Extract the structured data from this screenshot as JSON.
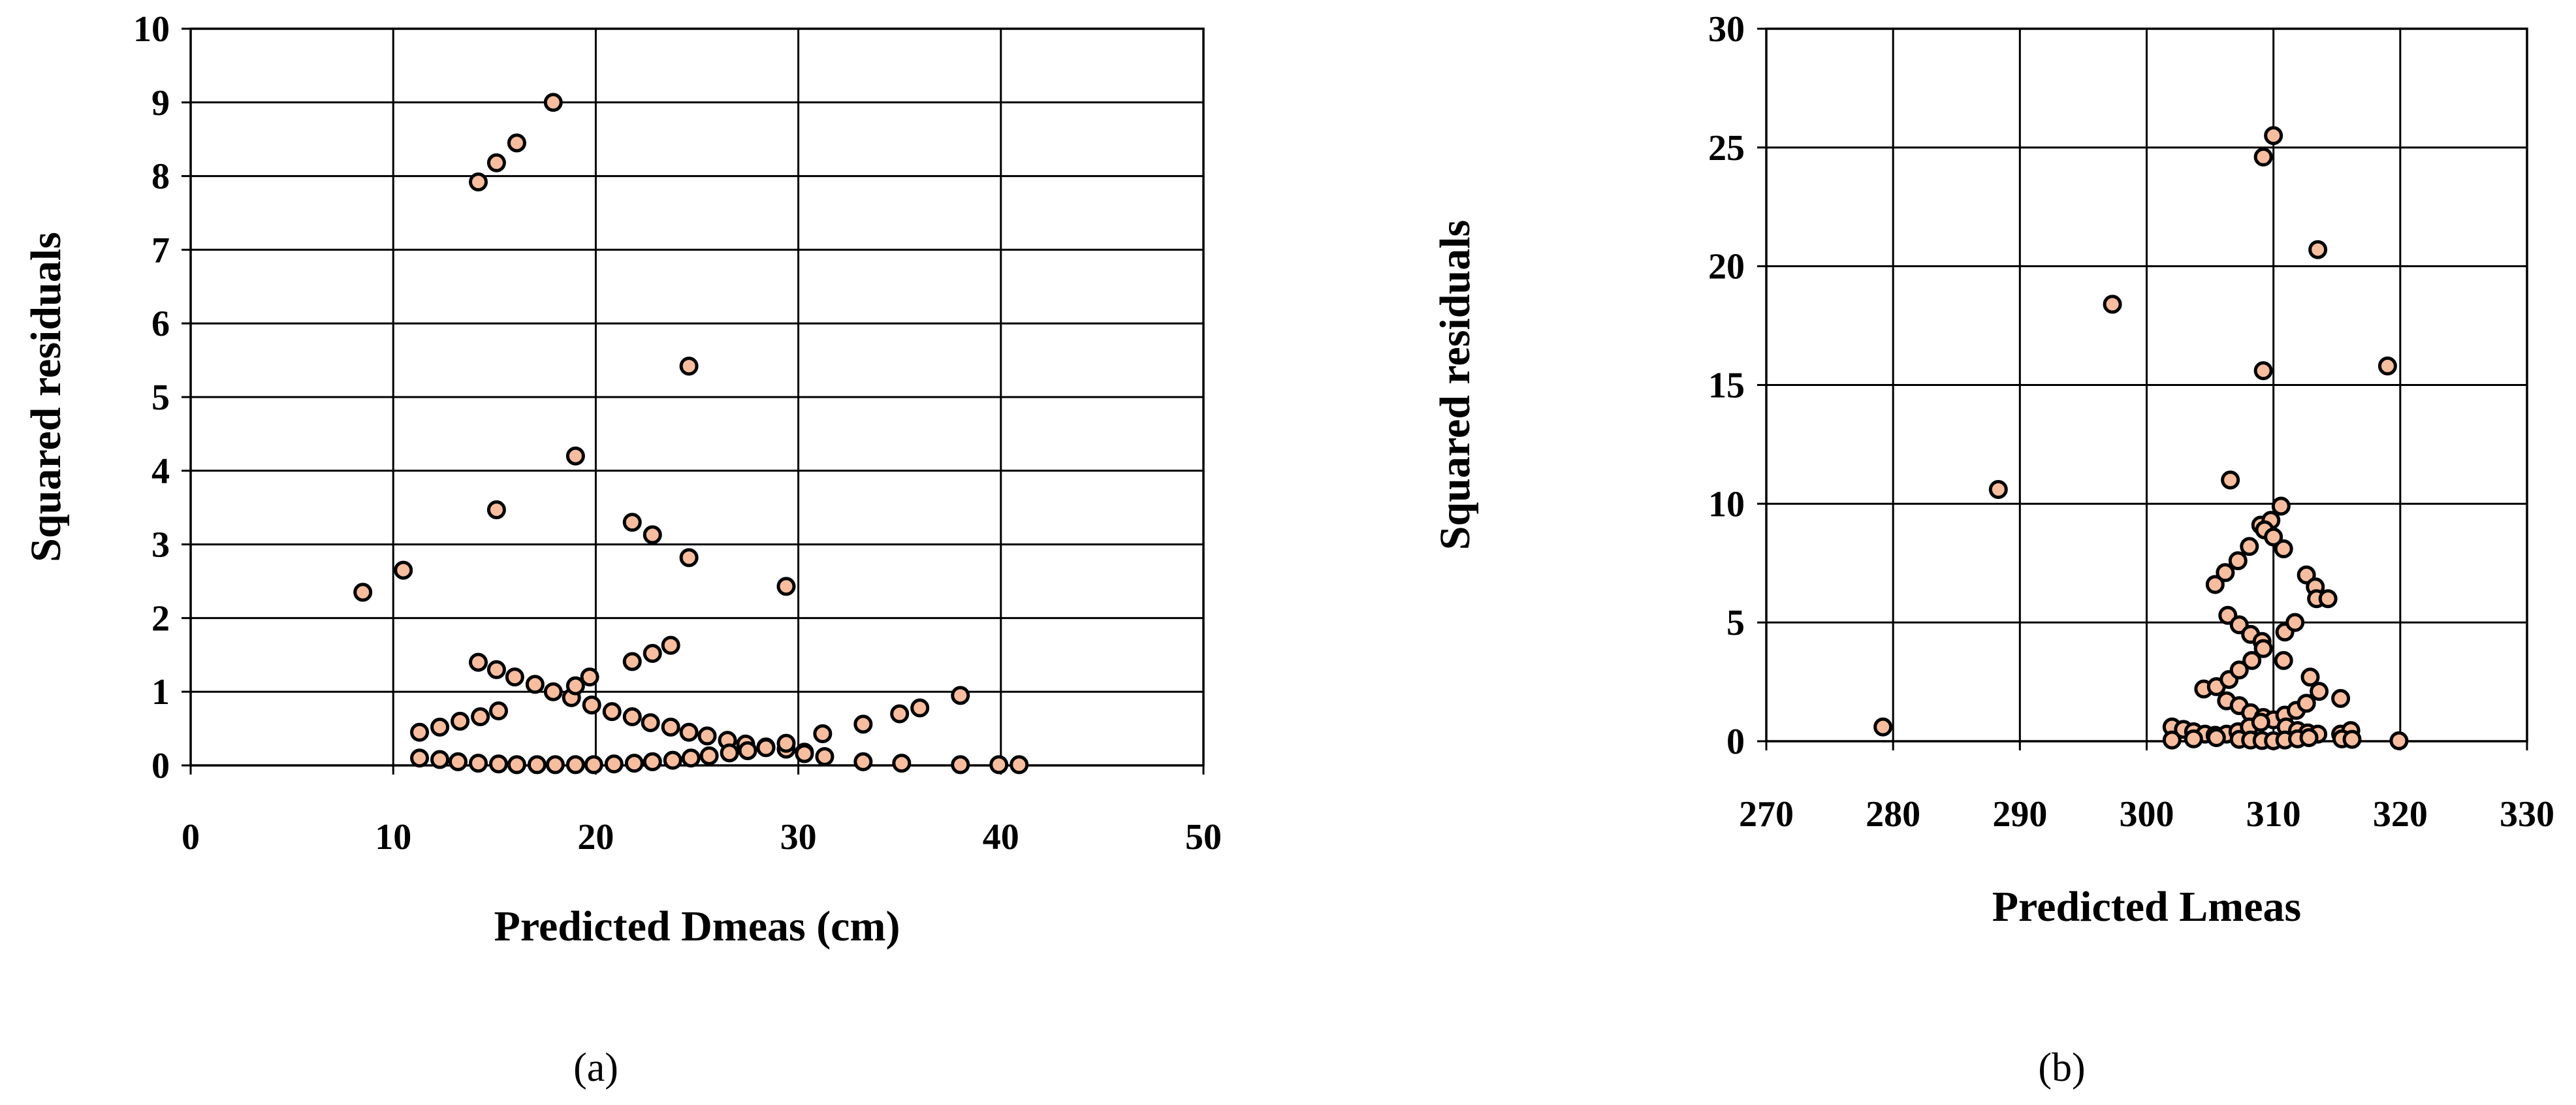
{
  "colors": {
    "marker_fill": "#f6bd9e",
    "marker_edge": "#000000"
  },
  "chart_data": [
    {
      "type": "scatter",
      "panel_label": "(a)",
      "xlabel": "Predicted Dmeas (cm)",
      "ylabel": "Squared residuals",
      "xlim": [
        0,
        50
      ],
      "ylim": [
        0,
        10
      ],
      "xticks": [
        "0",
        "10",
        "20",
        "30",
        "40",
        "50"
      ],
      "yticks": [
        "0",
        "1",
        "2",
        "3",
        "4",
        "5",
        "6",
        "7",
        "8",
        "9",
        "10"
      ],
      "grid": true,
      "legend": "none",
      "points": [
        [
          8.5,
          2.35
        ],
        [
          10.5,
          2.65
        ],
        [
          14.2,
          7.92
        ],
        [
          15.1,
          8.18
        ],
        [
          16.1,
          8.45
        ],
        [
          17.9,
          9.0
        ],
        [
          15.1,
          3.47
        ],
        [
          19.0,
          4.2
        ],
        [
          21.8,
          3.3
        ],
        [
          22.8,
          3.13
        ],
        [
          24.6,
          2.82
        ],
        [
          24.6,
          5.42
        ],
        [
          29.4,
          2.43
        ],
        [
          14.2,
          1.4
        ],
        [
          15.1,
          1.3
        ],
        [
          16.0,
          1.2
        ],
        [
          17.0,
          1.1
        ],
        [
          17.9,
          1.0
        ],
        [
          18.8,
          0.92
        ],
        [
          19.0,
          1.08
        ],
        [
          19.7,
          1.2
        ],
        [
          19.8,
          0.82
        ],
        [
          20.8,
          0.73
        ],
        [
          21.8,
          0.66
        ],
        [
          22.7,
          0.58
        ],
        [
          23.7,
          0.52
        ],
        [
          24.6,
          0.45
        ],
        [
          25.5,
          0.4
        ],
        [
          26.5,
          0.34
        ],
        [
          27.4,
          0.29
        ],
        [
          28.4,
          0.25
        ],
        [
          29.4,
          0.22
        ],
        [
          30.3,
          0.18
        ],
        [
          31.2,
          0.43
        ],
        [
          33.2,
          0.56
        ],
        [
          35.0,
          0.7
        ],
        [
          36.0,
          0.78
        ],
        [
          38.0,
          0.95
        ],
        [
          11.3,
          0.45
        ],
        [
          12.3,
          0.52
        ],
        [
          13.3,
          0.6
        ],
        [
          14.3,
          0.66
        ],
        [
          15.2,
          0.74
        ],
        [
          21.8,
          1.41
        ],
        [
          22.8,
          1.52
        ],
        [
          23.7,
          1.63
        ],
        [
          11.3,
          0.1
        ],
        [
          12.3,
          0.08
        ],
        [
          13.2,
          0.05
        ],
        [
          14.2,
          0.03
        ],
        [
          15.2,
          0.02
        ],
        [
          16.1,
          0.01
        ],
        [
          17.1,
          0.01
        ],
        [
          18.0,
          0.01
        ],
        [
          19.0,
          0.01
        ],
        [
          19.9,
          0.01
        ],
        [
          20.9,
          0.02
        ],
        [
          21.9,
          0.03
        ],
        [
          22.8,
          0.05
        ],
        [
          23.8,
          0.07
        ],
        [
          24.7,
          0.1
        ],
        [
          25.6,
          0.13
        ],
        [
          26.6,
          0.17
        ],
        [
          27.5,
          0.2
        ],
        [
          28.4,
          0.24
        ],
        [
          29.4,
          0.3
        ],
        [
          30.3,
          0.16
        ],
        [
          31.3,
          0.12
        ],
        [
          33.2,
          0.05
        ],
        [
          35.1,
          0.03
        ],
        [
          38.0,
          0.01
        ],
        [
          39.9,
          0.01
        ],
        [
          40.9,
          0.01
        ]
      ]
    },
    {
      "type": "scatter",
      "panel_label": "(b)",
      "xlabel": "Predicted Lmeas",
      "ylabel": "Squared residuals",
      "xlim": [
        270,
        330
      ],
      "ylim": [
        0,
        30
      ],
      "xticks": [
        "270",
        "280",
        "290",
        "300",
        "310",
        "320",
        "330"
      ],
      "yticks": [
        "0",
        "5",
        "10",
        "15",
        "20",
        "25",
        "30"
      ],
      "grid": true,
      "legend": "none",
      "points": [
        [
          279.2,
          0.6
        ],
        [
          288.3,
          10.6
        ],
        [
          297.3,
          18.4
        ],
        [
          309.2,
          24.6
        ],
        [
          310.0,
          25.5
        ],
        [
          313.5,
          20.7
        ],
        [
          309.2,
          15.6
        ],
        [
          319.0,
          15.8
        ],
        [
          306.6,
          11.0
        ],
        [
          305.4,
          6.6
        ],
        [
          306.2,
          7.1
        ],
        [
          307.2,
          7.6
        ],
        [
          308.1,
          8.2
        ],
        [
          309.0,
          9.1
        ],
        [
          309.8,
          9.3
        ],
        [
          310.6,
          9.9
        ],
        [
          309.3,
          8.9
        ],
        [
          310.0,
          8.6
        ],
        [
          310.8,
          8.1
        ],
        [
          312.6,
          7.0
        ],
        [
          313.3,
          6.5
        ],
        [
          313.4,
          6.0
        ],
        [
          314.3,
          6.0
        ],
        [
          306.4,
          5.3
        ],
        [
          307.3,
          4.9
        ],
        [
          308.2,
          4.5
        ],
        [
          309.1,
          4.2
        ],
        [
          309.2,
          3.9
        ],
        [
          310.9,
          4.6
        ],
        [
          311.7,
          5.0
        ],
        [
          310.8,
          3.4
        ],
        [
          312.9,
          2.7
        ],
        [
          313.6,
          2.1
        ],
        [
          315.3,
          1.8
        ],
        [
          304.5,
          2.2
        ],
        [
          305.5,
          2.3
        ],
        [
          306.5,
          2.6
        ],
        [
          307.3,
          3.0
        ],
        [
          308.3,
          3.4
        ],
        [
          306.3,
          1.7
        ],
        [
          307.3,
          1.5
        ],
        [
          308.2,
          1.2
        ],
        [
          309.2,
          1.0
        ],
        [
          310.0,
          0.9
        ],
        [
          310.9,
          1.1
        ],
        [
          311.8,
          1.3
        ],
        [
          312.6,
          1.6
        ],
        [
          302.0,
          0.6
        ],
        [
          302.9,
          0.5
        ],
        [
          303.7,
          0.4
        ],
        [
          304.6,
          0.3
        ],
        [
          305.4,
          0.25
        ],
        [
          306.3,
          0.3
        ],
        [
          307.2,
          0.4
        ],
        [
          308.1,
          0.6
        ],
        [
          309.0,
          0.8
        ],
        [
          311.0,
          0.6
        ],
        [
          311.9,
          0.45
        ],
        [
          312.7,
          0.35
        ],
        [
          313.5,
          0.3
        ],
        [
          315.3,
          0.3
        ],
        [
          316.1,
          0.45
        ],
        [
          302.0,
          0.05
        ],
        [
          303.7,
          0.1
        ],
        [
          305.5,
          0.15
        ],
        [
          307.3,
          0.08
        ],
        [
          308.2,
          0.05
        ],
        [
          309.1,
          0.03
        ],
        [
          310.0,
          0.02
        ],
        [
          310.9,
          0.05
        ],
        [
          311.9,
          0.1
        ],
        [
          312.8,
          0.15
        ],
        [
          315.4,
          0.1
        ],
        [
          316.2,
          0.08
        ],
        [
          319.9,
          0.02
        ]
      ]
    }
  ]
}
